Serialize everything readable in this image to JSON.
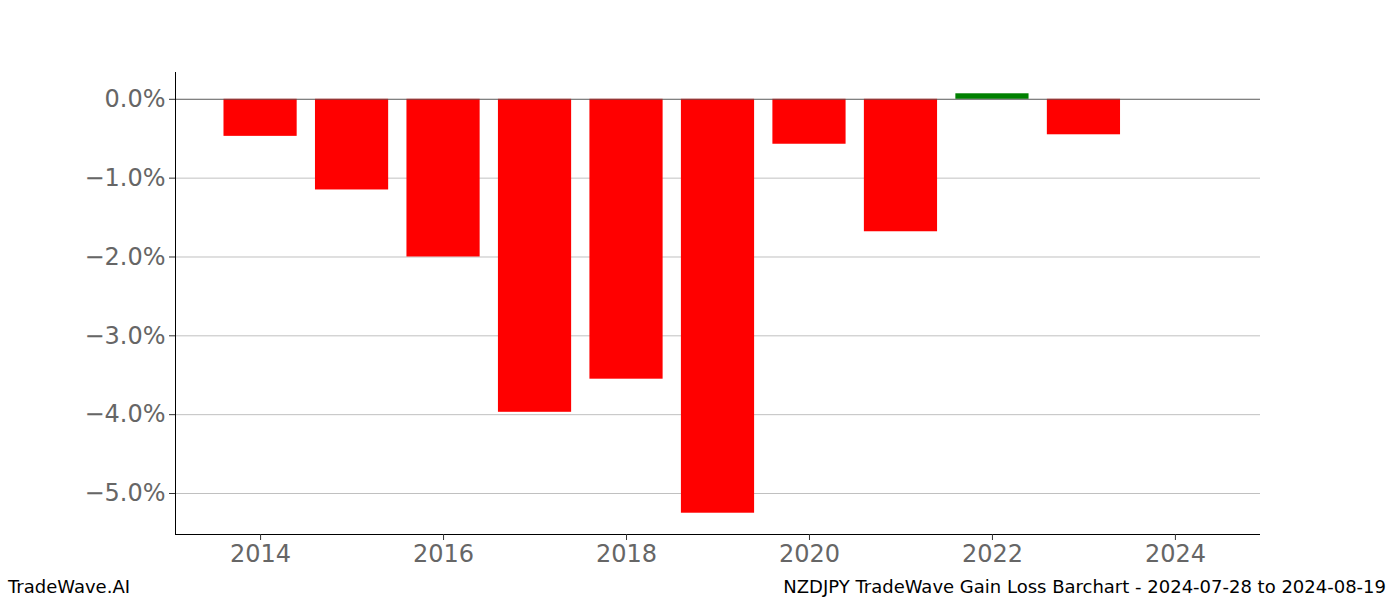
{
  "chart_data": {
    "type": "bar",
    "title": "NZDJPY TradeWave Gain Loss Barchart - 2024-07-28 to 2024-08-19",
    "annotations": [
      "TradeWave.AI"
    ],
    "x": [
      2014,
      2015,
      2016,
      2017,
      2018,
      2019,
      2020,
      2021,
      2022,
      2023
    ],
    "values": [
      -0.47,
      -1.15,
      -2.0,
      -3.97,
      -3.55,
      -5.25,
      -0.57,
      -1.68,
      0.07,
      -0.45
    ],
    "colors": [
      "#ff0000",
      "#ff0000",
      "#ff0000",
      "#ff0000",
      "#ff0000",
      "#ff0000",
      "#ff0000",
      "#ff0000",
      "#008000",
      "#ff0000"
    ],
    "xlim": [
      2013.07,
      2024.93
    ],
    "xticks": [
      2014,
      2016,
      2018,
      2020,
      2022,
      2024
    ],
    "ylim": [
      -5.52,
      0.34
    ],
    "yticks": [
      {
        "value": 0,
        "label": "0.0%"
      },
      {
        "value": -1,
        "label": "−1.0%"
      },
      {
        "value": -2,
        "label": "−2.0%"
      },
      {
        "value": -3,
        "label": "−3.0%"
      },
      {
        "value": -4,
        "label": "−4.0%"
      },
      {
        "value": -5,
        "label": "−5.0%"
      }
    ],
    "grid": true
  }
}
